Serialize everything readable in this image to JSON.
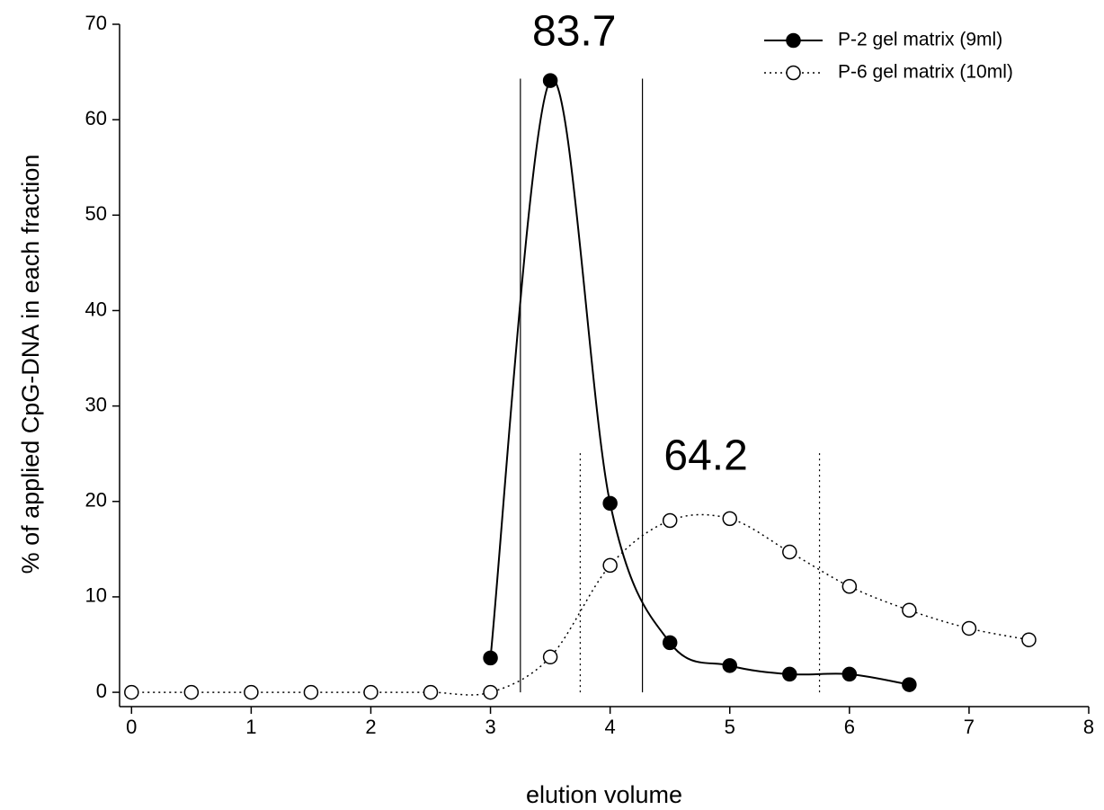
{
  "chart_data": {
    "type": "line",
    "xlabel": "elution volume",
    "ylabel": "% of applied CpG-DNA in each fraction",
    "xlim": [
      -0.1,
      8
    ],
    "ylim": [
      -1.5,
      70
    ],
    "xticks": [
      0,
      1,
      2,
      3,
      4,
      5,
      6,
      7,
      8
    ],
    "yticks": [
      0,
      10,
      20,
      30,
      40,
      50,
      60,
      70
    ],
    "legend": "upper right",
    "series": [
      {
        "name": "P-2 gel matrix (9ml)",
        "color": "#000000",
        "line": "solid",
        "marker": "filled",
        "x": [
          3,
          3.5,
          4,
          4.5,
          5,
          5.5,
          6,
          6.5
        ],
        "values": [
          3.6,
          64.1,
          19.8,
          5.2,
          2.8,
          1.9,
          1.9,
          0.8
        ]
      },
      {
        "name": "P-6 gel matrix (10ml)",
        "color": "#000000",
        "line": "dotted",
        "marker": "open",
        "x": [
          0,
          0.5,
          1,
          1.5,
          2,
          2.5,
          3,
          3.5,
          4,
          4.5,
          5,
          5.5,
          6,
          6.5,
          7,
          7.5
        ],
        "values": [
          0,
          0,
          0,
          0,
          0,
          0,
          0,
          3.7,
          13.3,
          18.0,
          18.2,
          14.7,
          11.1,
          8.6,
          6.7,
          5.5
        ]
      }
    ],
    "reference_lines": [
      {
        "x": 3.25,
        "y": [
          0,
          64.3
        ],
        "line": "solid"
      },
      {
        "x": 4.27,
        "y": [
          0,
          64.3
        ],
        "line": "solid"
      },
      {
        "x": 3.75,
        "y": [
          0,
          25.2
        ],
        "line": "dotted"
      },
      {
        "x": 5.75,
        "y": [
          0,
          25.2
        ],
        "line": "dotted"
      }
    ],
    "annotations": [
      {
        "text": "83.7",
        "x": 3.7,
        "y": 69
      },
      {
        "text": "64.2",
        "x": 4.8,
        "y": 24.5
      }
    ]
  }
}
